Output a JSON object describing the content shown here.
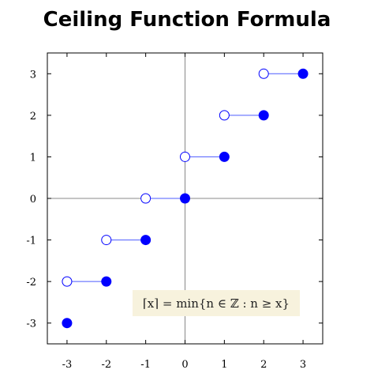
{
  "title": "Ceiling Function Formula",
  "annotation": "⌈x⌉ = min{n ∈ ℤ : n ≥ x}",
  "chart_data": {
    "type": "scatter",
    "title": "Ceiling Function Formula",
    "xlabel": "",
    "ylabel": "",
    "xlim": [
      -3.5,
      3.5
    ],
    "ylim": [
      -3.5,
      3.5
    ],
    "x_ticks": [
      -3,
      -2,
      -1,
      0,
      1,
      2,
      3
    ],
    "y_ticks": [
      -3,
      -2,
      -1,
      0,
      1,
      2,
      3
    ],
    "grid": false,
    "axes_lines": "x=0 and y=0",
    "segments": [
      {
        "x_start": -3,
        "x_end": -2,
        "y": -2
      },
      {
        "x_start": -2,
        "x_end": -1,
        "y": -1
      },
      {
        "x_start": -1,
        "x_end": 0,
        "y": 0
      },
      {
        "x_start": 0,
        "x_end": 1,
        "y": 1
      },
      {
        "x_start": 1,
        "x_end": 2,
        "y": 2
      },
      {
        "x_start": 2,
        "x_end": 3,
        "y": 3
      }
    ],
    "open_points": [
      [
        -3,
        -2
      ],
      [
        -2,
        -1
      ],
      [
        -1,
        0
      ],
      [
        0,
        1
      ],
      [
        1,
        2
      ],
      [
        2,
        3
      ]
    ],
    "closed_points": [
      [
        -3,
        -3
      ],
      [
        -2,
        -2
      ],
      [
        -1,
        -1
      ],
      [
        0,
        0
      ],
      [
        1,
        1
      ],
      [
        2,
        2
      ],
      [
        3,
        3
      ]
    ],
    "colors": {
      "point": "#0000ff",
      "segment": "#4d5cff",
      "axis": "#888888",
      "frame": "#000000"
    }
  }
}
